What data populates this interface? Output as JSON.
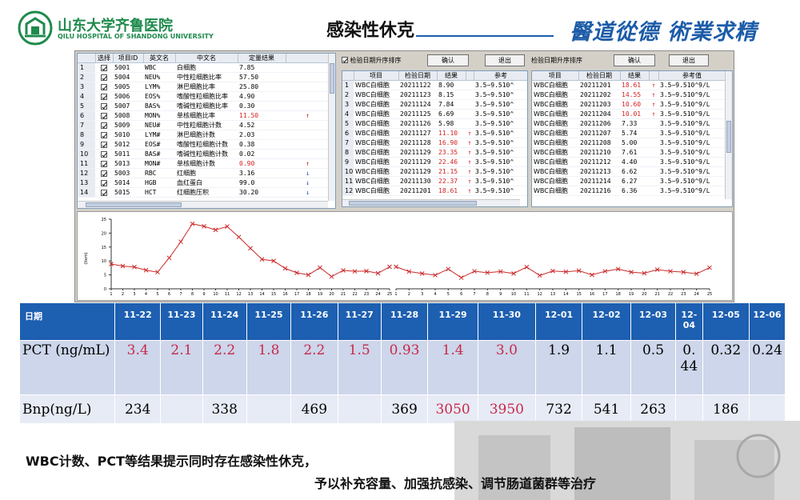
{
  "header": {
    "hospital_cn": "山东大学齐鲁医院",
    "hospital_en": "QILU HOSPITAL OF SHANDONG UNIVERSITY",
    "title": "感染性休克",
    "motto": "醫道從德 術業求精"
  },
  "panel1": {
    "columns": [
      "",
      "选择",
      "项目ID",
      "英文名",
      "中文名",
      "定量结果",
      ""
    ],
    "rows": [
      {
        "n": "1",
        "id": "5001",
        "en": "WBC",
        "cn": "白细胞",
        "val": "7.85",
        "flag": "",
        "hi": false
      },
      {
        "n": "2",
        "id": "5004",
        "en": "NEU%",
        "cn": "中性粒细胞比率",
        "val": "57.50",
        "flag": "",
        "hi": false
      },
      {
        "n": "3",
        "id": "5005",
        "en": "LYM%",
        "cn": "淋巴细胞比率",
        "val": "25.80",
        "flag": "",
        "hi": false
      },
      {
        "n": "4",
        "id": "5006",
        "en": "EOS%",
        "cn": "嗜酸性粒细胞比率",
        "val": "4.90",
        "flag": "",
        "hi": false
      },
      {
        "n": "5",
        "id": "5007",
        "en": "BAS%",
        "cn": "嗜碱性粒细胞比率",
        "val": "0.30",
        "flag": "",
        "hi": false
      },
      {
        "n": "6",
        "id": "5008",
        "en": "MON%",
        "cn": "单核细胞比率",
        "val": "11.50",
        "flag": "↑",
        "hi": true
      },
      {
        "n": "7",
        "id": "5009",
        "en": "NEU#",
        "cn": "中性粒细胞计数",
        "val": "4.52",
        "flag": "",
        "hi": false
      },
      {
        "n": "8",
        "id": "5010",
        "en": "LYM#",
        "cn": "淋巴细胞计数",
        "val": "2.03",
        "flag": "",
        "hi": false
      },
      {
        "n": "9",
        "id": "5012",
        "en": "EOS#",
        "cn": "嗜酸性粒细胞计数",
        "val": "0.38",
        "flag": "",
        "hi": false
      },
      {
        "n": "10",
        "id": "5011",
        "en": "BAS#",
        "cn": "嗜碱性粒细胞计数",
        "val": "0.02",
        "flag": "",
        "hi": false
      },
      {
        "n": "11",
        "id": "5013",
        "en": "MON#",
        "cn": "单核细胞计数",
        "val": "0.90",
        "flag": "↑",
        "hi": true
      },
      {
        "n": "12",
        "id": "5003",
        "en": "RBC",
        "cn": "红细胞",
        "val": "3.16",
        "flag": "↓",
        "hi": false
      },
      {
        "n": "13",
        "id": "5014",
        "en": "HGB",
        "cn": "血红蛋白",
        "val": "99.0",
        "flag": "↓",
        "hi": false
      },
      {
        "n": "14",
        "id": "5015",
        "en": "HCT",
        "cn": "红细胞压积",
        "val": "30.20",
        "flag": "↓",
        "hi": false
      }
    ]
  },
  "panel2": {
    "sort_label": "检验日期升序排序",
    "confirm": "确认",
    "exit": "退出",
    "columns": [
      "",
      "项目",
      "检验日期",
      "结果",
      "",
      "参考"
    ],
    "rows": [
      {
        "n": "1",
        "item": "WBC白细胞",
        "date": "20211122",
        "val": "8.90",
        "flag": "",
        "ref": "3.5~9.510^",
        "hi": false
      },
      {
        "n": "2",
        "item": "WBC白细胞",
        "date": "20211123",
        "val": "8.15",
        "flag": "",
        "ref": "3.5~9.510^",
        "hi": false
      },
      {
        "n": "3",
        "item": "WBC白细胞",
        "date": "20211124",
        "val": "7.84",
        "flag": "",
        "ref": "3.5~9.510^",
        "hi": false
      },
      {
        "n": "4",
        "item": "WBC白细胞",
        "date": "20211125",
        "val": "6.69",
        "flag": "",
        "ref": "3.5~9.510^",
        "hi": false
      },
      {
        "n": "5",
        "item": "WBC白细胞",
        "date": "20211126",
        "val": "5.98",
        "flag": "",
        "ref": "3.5~9.510^",
        "hi": false
      },
      {
        "n": "6",
        "item": "WBC白细胞",
        "date": "20211127",
        "val": "11.10",
        "flag": "↑",
        "ref": "3.5~9.510^",
        "hi": true
      },
      {
        "n": "7",
        "item": "WBC白细胞",
        "date": "20211128",
        "val": "16.90",
        "flag": "↑",
        "ref": "3.5~9.510^",
        "hi": true
      },
      {
        "n": "8",
        "item": "WBC白细胞",
        "date": "20211129",
        "val": "23.35",
        "flag": "↑",
        "ref": "3.5~9.510^",
        "hi": true
      },
      {
        "n": "9",
        "item": "WBC白细胞",
        "date": "20211129",
        "val": "22.46",
        "flag": "↑",
        "ref": "3.5~9.510^",
        "hi": true
      },
      {
        "n": "10",
        "item": "WBC白细胞",
        "date": "20211129",
        "val": "21.15",
        "flag": "↑",
        "ref": "3.5~9.510^",
        "hi": true
      },
      {
        "n": "11",
        "item": "WBC白细胞",
        "date": "20211130",
        "val": "22.37",
        "flag": "↑",
        "ref": "3.5~9.510^",
        "hi": true
      },
      {
        "n": "12",
        "item": "WBC白细胞",
        "date": "20211201",
        "val": "18.61",
        "flag": "↑",
        "ref": "3.5~9.510^",
        "hi": true
      }
    ]
  },
  "panel3": {
    "sort_label": "检验日期升序排序",
    "confirm": "确认",
    "exit": "退出",
    "columns": [
      "项目",
      "检验日期",
      "结果",
      "",
      "参考值"
    ],
    "rows": [
      {
        "item": "WBC白细胞",
        "date": "20211201",
        "val": "18.61",
        "flag": "↑",
        "ref": "3.5~9.510^9/L",
        "hi": true
      },
      {
        "item": "WBC白细胞",
        "date": "20211202",
        "val": "14.55",
        "flag": "↑",
        "ref": "3.5~9.510^9/L",
        "hi": true
      },
      {
        "item": "WBC白细胞",
        "date": "20211203",
        "val": "10.60",
        "flag": "↑",
        "ref": "3.5~9.510^9/L",
        "hi": true
      },
      {
        "item": "WBC白细胞",
        "date": "20211204",
        "val": "10.01",
        "flag": "↑",
        "ref": "3.5~9.510^9/L",
        "hi": true
      },
      {
        "item": "WBC白细胞",
        "date": "20211206",
        "val": "7.33",
        "flag": "",
        "ref": "3.5~9.510^9/L",
        "hi": false
      },
      {
        "item": "WBC白细胞",
        "date": "20211207",
        "val": "5.74",
        "flag": "",
        "ref": "3.5~9.510^9/L",
        "hi": false
      },
      {
        "item": "WBC白细胞",
        "date": "20211208",
        "val": "5.00",
        "flag": "",
        "ref": "3.5~9.510^9/L",
        "hi": false
      },
      {
        "item": "WBC白细胞",
        "date": "20211210",
        "val": "7.61",
        "flag": "",
        "ref": "3.5~9.510^9/L",
        "hi": false
      },
      {
        "item": "WBC白细胞",
        "date": "20211212",
        "val": "4.40",
        "flag": "",
        "ref": "3.5~9.510^9/L",
        "hi": false
      },
      {
        "item": "WBC白细胞",
        "date": "20211213",
        "val": "6.62",
        "flag": "",
        "ref": "3.5~9.510^9/L",
        "hi": false
      },
      {
        "item": "WBC白细胞",
        "date": "20211214",
        "val": "6.27",
        "flag": "",
        "ref": "3.5~9.510^9/L",
        "hi": false
      },
      {
        "item": "WBC白细胞",
        "date": "20211216",
        "val": "6.36",
        "flag": "",
        "ref": "3.5~9.510^9/L",
        "hi": false
      }
    ]
  },
  "chart_data": [
    {
      "type": "line",
      "ylabel": "(Item)",
      "ylim": [
        0,
        25
      ],
      "yticks": [
        "0",
        "5",
        "10",
        "15",
        "20",
        "25"
      ],
      "x": [
        1,
        2,
        3,
        4,
        5,
        6,
        7,
        8,
        9,
        10,
        11,
        12,
        13,
        14,
        15,
        16,
        17,
        18,
        19,
        20,
        21,
        22,
        23,
        24,
        25
      ],
      "values": [
        8.9,
        8.15,
        7.84,
        6.69,
        5.98,
        11.1,
        16.9,
        23.35,
        22.46,
        21.15,
        22.37,
        18.61,
        14.55,
        10.6,
        10.01,
        7.33,
        5.74,
        5.0,
        7.61,
        4.4,
        6.62,
        6.27,
        6.36,
        5.6,
        7.9
      ],
      "color": "#cc2a2a"
    },
    {
      "type": "line",
      "ylim": [
        0,
        25
      ],
      "x": [
        1,
        2,
        3,
        4,
        5,
        6,
        7,
        8,
        9,
        10,
        11,
        12,
        13,
        14,
        15,
        16,
        17,
        18,
        19,
        20,
        21,
        22,
        23,
        24,
        25
      ],
      "values": [
        7.9,
        6.2,
        5.5,
        4.9,
        7.1,
        4.0,
        6.3,
        5.8,
        6.2,
        5.5,
        7.8,
        4.8,
        6.4,
        6.1,
        6.5,
        5.0,
        6.3,
        7.1,
        6.0,
        5.6,
        6.9,
        6.3,
        6.0,
        5.4,
        7.6
      ],
      "color": "#cc2a2a"
    }
  ],
  "lab_table": {
    "dates": [
      "日期",
      "11-22",
      "11-23",
      "11-24",
      "11-25",
      "11-26",
      "11-27",
      "11-28",
      "11-29",
      "11-30",
      "12-01",
      "12-02",
      "12-03",
      "12-04",
      "12-05",
      "12-06"
    ],
    "pct": [
      "PCT (ng/mL)",
      "3.4",
      "2.1",
      "2.2",
      "1.8",
      "2.2",
      "1.5",
      "0.93",
      "1.4",
      "3.0",
      "1.9",
      "1.1",
      "0.5",
      "0.44",
      "0.32",
      "0.24"
    ],
    "bnp": [
      "Bnp(ng/L)",
      "234",
      "",
      "338",
      "",
      "469",
      "",
      "369",
      "3050",
      "3950",
      "732",
      "541",
      "263",
      "",
      "186",
      ""
    ],
    "pct_red_count": 9,
    "bnp_red": [
      8,
      9
    ],
    "red_color": "#c8284b"
  },
  "conclusion": {
    "line1": "WBC计数、PCT等结果提示同时存在感染性休克，",
    "line2": "予以补充容量、加强抗感染、调节肠道菌群等治疗"
  }
}
